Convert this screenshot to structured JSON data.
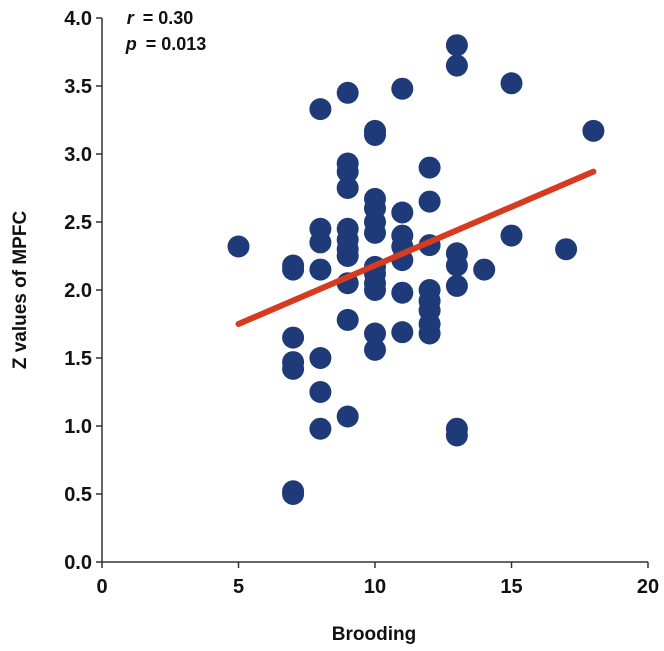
{
  "colors": {
    "point": "#1f3a78",
    "fit_line": "#d63a1f",
    "axis": "#333333"
  },
  "stats": {
    "r_label": "r",
    "r_value": "= 0.30",
    "p_label": "p",
    "p_value": "= 0.013"
  },
  "chart_data": {
    "type": "scatter",
    "xlabel": "Brooding",
    "ylabel": "Z values of MPFC",
    "xlim": [
      0,
      20
    ],
    "ylim": [
      0.0,
      4.0
    ],
    "xticks": [
      "0",
      "5",
      "10",
      "15",
      "20"
    ],
    "yticks": [
      "0.0",
      "0.5",
      "1.0",
      "1.5",
      "2.0",
      "2.5",
      "3.0",
      "3.5",
      "4.0"
    ],
    "grid": false,
    "points": [
      [
        5,
        2.32
      ],
      [
        7,
        2.18
      ],
      [
        7,
        2.15
      ],
      [
        7,
        1.65
      ],
      [
        7,
        1.47
      ],
      [
        7,
        1.42
      ],
      [
        7,
        0.52
      ],
      [
        7,
        0.5
      ],
      [
        8,
        3.33
      ],
      [
        8,
        2.45
      ],
      [
        8,
        2.35
      ],
      [
        8,
        2.15
      ],
      [
        8,
        1.5
      ],
      [
        8,
        1.25
      ],
      [
        8,
        0.98
      ],
      [
        9,
        3.45
      ],
      [
        9,
        2.93
      ],
      [
        9,
        2.87
      ],
      [
        9,
        2.75
      ],
      [
        9,
        2.45
      ],
      [
        9,
        2.37
      ],
      [
        9,
        2.3
      ],
      [
        9,
        2.25
      ],
      [
        9,
        2.05
      ],
      [
        9,
        1.78
      ],
      [
        9,
        1.07
      ],
      [
        10,
        3.17
      ],
      [
        10,
        3.14
      ],
      [
        10,
        2.67
      ],
      [
        10,
        2.6
      ],
      [
        10,
        2.5
      ],
      [
        10,
        2.42
      ],
      [
        10,
        2.17
      ],
      [
        10,
        2.12
      ],
      [
        10,
        2.05
      ],
      [
        10,
        2.0
      ],
      [
        10,
        1.68
      ],
      [
        10,
        1.56
      ],
      [
        11,
        3.48
      ],
      [
        11,
        2.57
      ],
      [
        11,
        2.4
      ],
      [
        11,
        2.32
      ],
      [
        11,
        2.22
      ],
      [
        11,
        1.98
      ],
      [
        11,
        1.69
      ],
      [
        12,
        2.9
      ],
      [
        12,
        2.65
      ],
      [
        12,
        2.33
      ],
      [
        12,
        2.0
      ],
      [
        12,
        1.92
      ],
      [
        12,
        1.85
      ],
      [
        12,
        1.75
      ],
      [
        12,
        1.68
      ],
      [
        13,
        3.8
      ],
      [
        13,
        3.65
      ],
      [
        13,
        2.27
      ],
      [
        13,
        2.18
      ],
      [
        13,
        2.03
      ],
      [
        13,
        0.98
      ],
      [
        13,
        0.93
      ],
      [
        14,
        2.15
      ],
      [
        15,
        3.52
      ],
      [
        15,
        2.4
      ],
      [
        17,
        2.3
      ],
      [
        18,
        3.17
      ]
    ],
    "fit_line": {
      "x": [
        5,
        18
      ],
      "y": [
        1.75,
        2.87
      ]
    },
    "annotations": [
      "r = 0.30",
      "p = 0.013"
    ]
  }
}
